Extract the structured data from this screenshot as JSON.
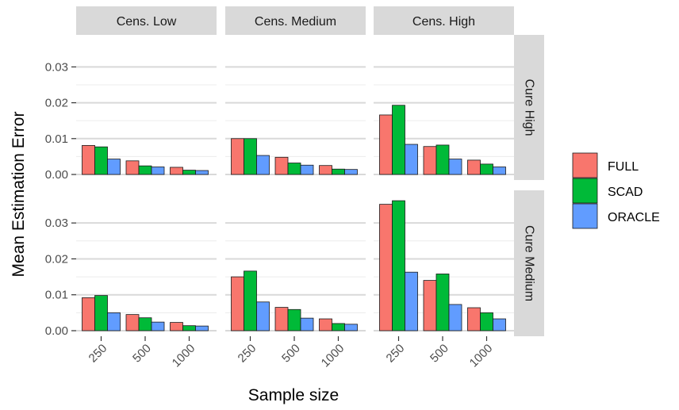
{
  "chart_data": {
    "type": "bar",
    "xlabel": "Sample size",
    "ylabel": "Mean Estimation Error",
    "categories": [
      "250",
      "500",
      "1000"
    ],
    "columns": [
      "Cens. Low",
      "Cens. Medium",
      "Cens. High"
    ],
    "rows": [
      "Cure High",
      "Cure Medium"
    ],
    "yticks": [
      "0.00",
      "0.01",
      "0.02",
      "0.03"
    ],
    "ylim_rows": [
      [
        0,
        0.033
      ],
      [
        0,
        0.036
      ]
    ],
    "legend": {
      "position": "right",
      "items": [
        "FULL",
        "SCAD",
        "ORACLE"
      ]
    },
    "series_colors": {
      "FULL": "#F8766D",
      "SCAD": "#00BA38",
      "ORACLE": "#619CFF"
    },
    "panel_background": "#ffffff",
    "strip_background": "#d9d9d9",
    "grid": true,
    "panels": [
      {
        "row": "Cure High",
        "col": "Cens. Low",
        "series": [
          {
            "name": "FULL",
            "values": [
              0.0081,
              0.0038,
              0.002
            ]
          },
          {
            "name": "SCAD",
            "values": [
              0.0077,
              0.0024,
              0.0012
            ]
          },
          {
            "name": "ORACLE",
            "values": [
              0.0043,
              0.0021,
              0.0011
            ]
          }
        ]
      },
      {
        "row": "Cure High",
        "col": "Cens. Medium",
        "series": [
          {
            "name": "FULL",
            "values": [
              0.01,
              0.0048,
              0.0025
            ]
          },
          {
            "name": "SCAD",
            "values": [
              0.01,
              0.0032,
              0.0015
            ]
          },
          {
            "name": "ORACLE",
            "values": [
              0.0053,
              0.0026,
              0.0014
            ]
          }
        ]
      },
      {
        "row": "Cure High",
        "col": "Cens. High",
        "series": [
          {
            "name": "FULL",
            "values": [
              0.0166,
              0.0078,
              0.004
            ]
          },
          {
            "name": "SCAD",
            "values": [
              0.0193,
              0.0082,
              0.0029
            ]
          },
          {
            "name": "ORACLE",
            "values": [
              0.0084,
              0.0043,
              0.0021
            ]
          }
        ]
      },
      {
        "row": "Cure Medium",
        "col": "Cens. Low",
        "series": [
          {
            "name": "FULL",
            "values": [
              0.0092,
              0.0045,
              0.0023
            ]
          },
          {
            "name": "SCAD",
            "values": [
              0.0098,
              0.0036,
              0.0014
            ]
          },
          {
            "name": "ORACLE",
            "values": [
              0.005,
              0.0024,
              0.0013
            ]
          }
        ]
      },
      {
        "row": "Cure Medium",
        "col": "Cens. Medium",
        "series": [
          {
            "name": "FULL",
            "values": [
              0.015,
              0.0065,
              0.0033
            ]
          },
          {
            "name": "SCAD",
            "values": [
              0.0166,
              0.0059,
              0.002
            ]
          },
          {
            "name": "ORACLE",
            "values": [
              0.008,
              0.0035,
              0.0018
            ]
          }
        ]
      },
      {
        "row": "Cure Medium",
        "col": "Cens. High",
        "series": [
          {
            "name": "FULL",
            "values": [
              0.0352,
              0.014,
              0.0064
            ]
          },
          {
            "name": "SCAD",
            "values": [
              0.0362,
              0.0158,
              0.005
            ]
          },
          {
            "name": "ORACLE",
            "values": [
              0.0163,
              0.0073,
              0.0033
            ]
          }
        ]
      }
    ]
  }
}
